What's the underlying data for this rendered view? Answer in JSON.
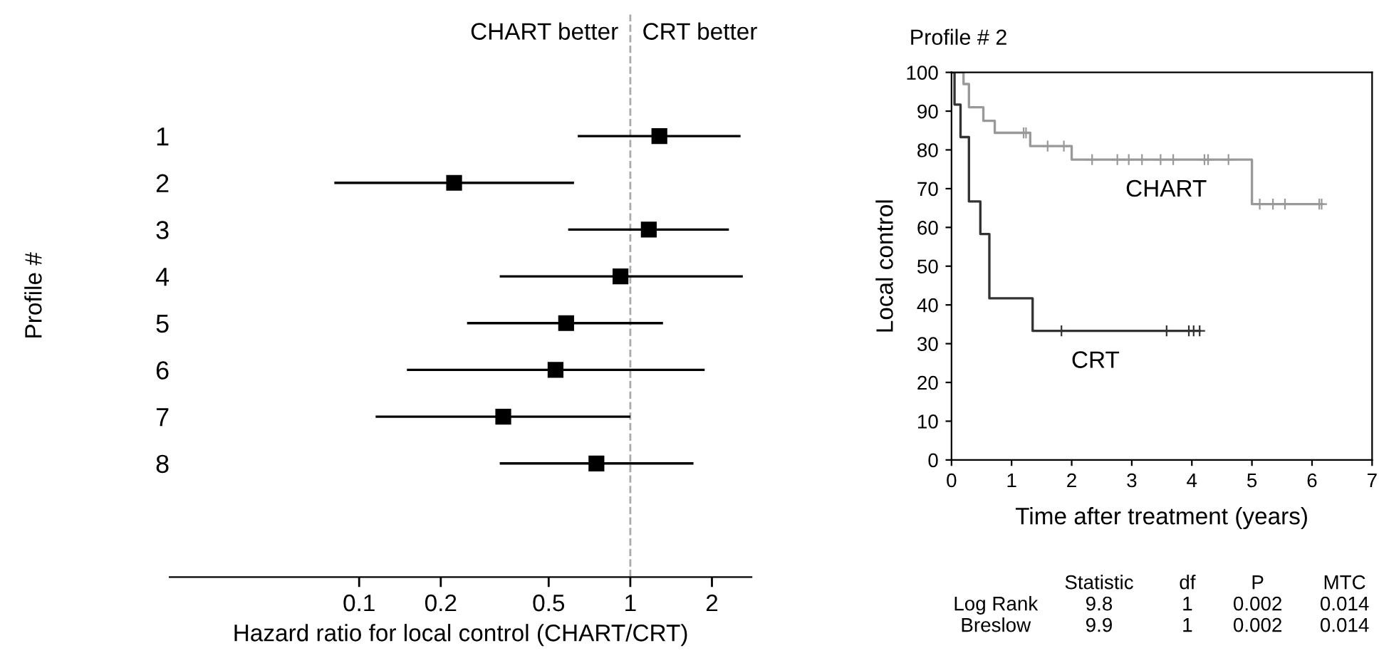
{
  "chart_data": [
    {
      "type": "scatter",
      "xlabel": "Hazard ratio for local control (CHART/CRT)",
      "ylabel": "Profile #",
      "orientation": "horizontal",
      "log": "x",
      "categories": [
        "1",
        "2",
        "3",
        "4",
        "5",
        "6",
        "7",
        "8"
      ],
      "series": [
        {
          "color": "#000000",
          "values": [
            1.28,
            0.224,
            1.17,
            0.92,
            0.58,
            0.53,
            0.34,
            0.75
          ],
          "errors": [
            [
              0.64,
              2.55
            ],
            [
              0.081,
              0.62
            ],
            [
              0.59,
              2.31
            ],
            [
              0.33,
              2.6
            ],
            [
              0.25,
              1.32
            ],
            [
              0.15,
              1.88
            ],
            [
              0.115,
              1.0
            ],
            [
              0.33,
              1.71
            ]
          ]
        }
      ],
      "marker": "square",
      "xlim": [
        0.02,
        2.8
      ],
      "xticks": [
        0.1,
        0.2,
        0.5,
        1,
        2
      ],
      "ref_lines": [
        {
          "axis": "x",
          "value": 1,
          "color": "#aaaaaa",
          "line_style": "dashed"
        }
      ],
      "annotations": [
        "CHART better",
        "CRT better"
      ],
      "grid": false,
      "legend": false
    },
    {
      "type": "step",
      "title": "Profile # 2",
      "xlabel": "Time after treatment (years)",
      "ylabel": "Local control",
      "series": [
        {
          "name": "CHART",
          "color": "#999999",
          "x": [
            0,
            0.2,
            0.29,
            0.53,
            0.72,
            1.31,
            2.0,
            5.0,
            6.16
          ],
          "values": [
            100,
            97,
            91,
            87.5,
            84.4,
            81,
            77.5,
            66,
            66
          ]
        },
        {
          "name": "CRT",
          "color": "#333333",
          "x": [
            0,
            0.05,
            0.15,
            0.29,
            0.48,
            0.63,
            1.35,
            4.13
          ],
          "values": [
            100,
            91.7,
            83.3,
            66.7,
            58.3,
            41.7,
            33.3,
            33.3
          ]
        },
        {
          "type": "scatter",
          "color": "#999999",
          "marker": "cross",
          "x": [
            1.2,
            1.24,
            1.6,
            1.87,
            2.34,
            2.76,
            2.95,
            3.17,
            3.48,
            3.69,
            4.21,
            4.27,
            4.61,
            5.13,
            5.35,
            5.55,
            6.12,
            6.16
          ],
          "values": [
            84.4,
            84.4,
            81,
            81,
            77.5,
            77.5,
            77.5,
            77.5,
            77.5,
            77.5,
            77.5,
            77.5,
            77.5,
            66,
            66,
            66,
            66,
            66
          ]
        },
        {
          "type": "scatter",
          "color": "#333333",
          "marker": "cross",
          "x": [
            1.83,
            3.58,
            3.95,
            4.03,
            4.13
          ],
          "values": [
            33.3,
            33.3,
            33.3,
            33.3,
            33.3
          ]
        }
      ],
      "xlim": [
        0,
        7
      ],
      "xticks": [
        0,
        1,
        2,
        3,
        4,
        5,
        6,
        7
      ],
      "ylim": [
        0,
        100
      ],
      "yticks": [
        0,
        10,
        20,
        30,
        40,
        50,
        60,
        70,
        80,
        90,
        100
      ],
      "grid": false,
      "legend": false,
      "annotations": [
        "Statistic",
        "df",
        "P",
        "MTC",
        "Log Rank",
        "9.8",
        "1",
        "0.002",
        "0.014",
        "Breslow",
        "9.9",
        "1",
        "0.002",
        "0.014"
      ]
    }
  ]
}
